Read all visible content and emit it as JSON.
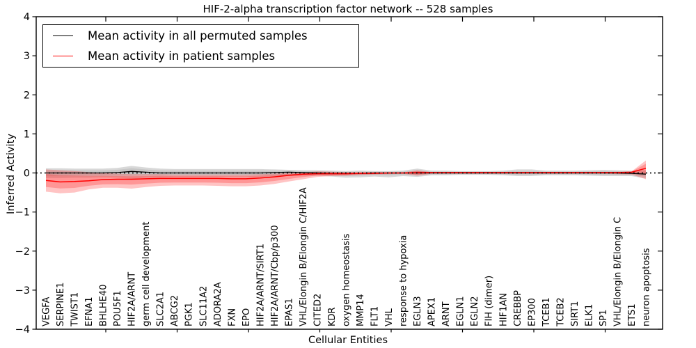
{
  "chart_data": {
    "type": "line",
    "title": "HIF-2-alpha transcription factor network -- 528 samples",
    "xlabel": "Cellular Entities",
    "ylabel": "Inferred Activity",
    "ylim": [
      -4,
      4
    ],
    "y_ticks": [
      "4",
      "3",
      "2",
      "1",
      "0",
      "−1",
      "−2",
      "−3",
      "−4"
    ],
    "y_tick_values": [
      4,
      3,
      2,
      1,
      0,
      -1,
      -2,
      -3,
      -4
    ],
    "grid": false,
    "legend_position": "upper left",
    "zero_line": {
      "value": 0,
      "style": "dotted",
      "color": "#000000"
    },
    "categories": [
      "VEGFA",
      "SERPINE1",
      "TWIST1",
      "EFNA1",
      "BHLHE40",
      "POU5F1",
      "HIF2A/ARNT",
      "germ cell development",
      "SLC2A1",
      "ABCG2",
      "PGK1",
      "SLC11A2",
      "ADORA2A",
      "FXN",
      "EPO",
      "HIF2A/ARNT/SIRT1",
      "HIF2A/ARNT/Cbp/p300",
      "EPAS1",
      "VHL/Elongin B/Elongin C/HIF2A",
      "CITED2",
      "KDR",
      "oxygen homeostasis",
      "MMP14",
      "FLT1",
      "VHL",
      "response to hypoxia",
      "EGLN3",
      "APEX1",
      "ARNT",
      "EGLN1",
      "EGLN2",
      "FIH (dimer)",
      "HIF1AN",
      "CREBBP",
      "EP300",
      "TCEB1",
      "TCEB2",
      "SIRT1",
      "ELK1",
      "SP1",
      "VHL/Elongin B/Elongin C",
      "ETS1",
      "neuron apoptosis"
    ],
    "series": [
      {
        "name": "Mean activity in all permuted samples",
        "color": "#000000",
        "band_color": "#999999",
        "values": [
          0.0,
          0.0,
          0.0,
          0.0,
          0.0,
          0.01,
          0.04,
          0.02,
          0.0,
          0.0,
          0.0,
          0.0,
          0.0,
          0.0,
          0.0,
          0.0,
          0.01,
          0.02,
          0.01,
          0.0,
          -0.01,
          -0.01,
          -0.01,
          0.0,
          0.0,
          0.0,
          0.0,
          0.0,
          0.0,
          0.0,
          0.0,
          0.0,
          0.0,
          0.0,
          0.0,
          0.0,
          0.0,
          0.0,
          0.0,
          0.0,
          0.0,
          -0.01,
          -0.03
        ],
        "band_top": [
          0.12,
          0.12,
          0.11,
          0.11,
          0.11,
          0.13,
          0.18,
          0.14,
          0.11,
          0.1,
          0.1,
          0.1,
          0.1,
          0.1,
          0.1,
          0.1,
          0.09,
          0.08,
          0.07,
          0.07,
          0.06,
          0.05,
          0.06,
          0.05,
          0.05,
          0.06,
          0.11,
          0.06,
          0.06,
          0.05,
          0.05,
          0.05,
          0.06,
          0.09,
          0.09,
          0.06,
          0.06,
          0.06,
          0.07,
          0.08,
          0.07,
          0.06,
          0.07
        ],
        "band_bottom": [
          -0.13,
          -0.13,
          -0.12,
          -0.12,
          -0.11,
          -0.12,
          -0.15,
          -0.12,
          -0.11,
          -0.1,
          -0.1,
          -0.1,
          -0.1,
          -0.1,
          -0.1,
          -0.1,
          -0.09,
          -0.08,
          -0.07,
          -0.07,
          -0.09,
          -0.12,
          -0.11,
          -0.09,
          -0.11,
          -0.08,
          -0.1,
          -0.06,
          -0.06,
          -0.05,
          -0.05,
          -0.05,
          -0.06,
          -0.08,
          -0.08,
          -0.06,
          -0.06,
          -0.06,
          -0.07,
          -0.08,
          -0.08,
          -0.08,
          -0.14
        ]
      },
      {
        "name": "Mean activity in patient samples",
        "color": "#ff0000",
        "band_color": "#ff2a2a",
        "values": [
          -0.19,
          -0.23,
          -0.22,
          -0.2,
          -0.17,
          -0.16,
          -0.16,
          -0.15,
          -0.14,
          -0.14,
          -0.14,
          -0.14,
          -0.14,
          -0.15,
          -0.15,
          -0.13,
          -0.1,
          -0.06,
          -0.03,
          -0.02,
          -0.02,
          -0.02,
          -0.01,
          -0.01,
          0.0,
          0.0,
          0.01,
          0.01,
          0.01,
          0.01,
          0.01,
          0.01,
          0.01,
          0.01,
          0.01,
          0.01,
          0.01,
          0.01,
          0.01,
          0.01,
          0.01,
          0.02,
          0.12
        ],
        "band_top": [
          0.09,
          0.07,
          0.05,
          0.02,
          0.0,
          -0.02,
          -0.03,
          -0.03,
          -0.03,
          -0.04,
          -0.04,
          -0.04,
          -0.04,
          -0.04,
          -0.04,
          -0.03,
          -0.02,
          0.0,
          0.01,
          0.04,
          0.03,
          0.02,
          0.02,
          0.02,
          0.01,
          0.01,
          0.07,
          0.02,
          0.02,
          0.02,
          0.02,
          0.02,
          0.02,
          0.02,
          0.02,
          0.02,
          0.02,
          0.02,
          0.02,
          0.02,
          0.03,
          0.04,
          0.32
        ],
        "band_bottom": [
          -0.48,
          -0.52,
          -0.5,
          -0.42,
          -0.38,
          -0.38,
          -0.4,
          -0.36,
          -0.33,
          -0.32,
          -0.32,
          -0.32,
          -0.33,
          -0.34,
          -0.34,
          -0.32,
          -0.28,
          -0.22,
          -0.16,
          -0.1,
          -0.08,
          -0.07,
          -0.05,
          -0.04,
          -0.03,
          -0.02,
          -0.07,
          -0.02,
          -0.02,
          -0.02,
          -0.02,
          -0.02,
          -0.02,
          -0.02,
          -0.02,
          -0.02,
          -0.02,
          -0.02,
          -0.02,
          -0.02,
          -0.03,
          -0.04,
          -0.16
        ]
      }
    ]
  },
  "legend": {
    "entries": [
      {
        "label": "Mean activity in all permuted samples"
      },
      {
        "label": "Mean activity in patient samples"
      }
    ]
  }
}
